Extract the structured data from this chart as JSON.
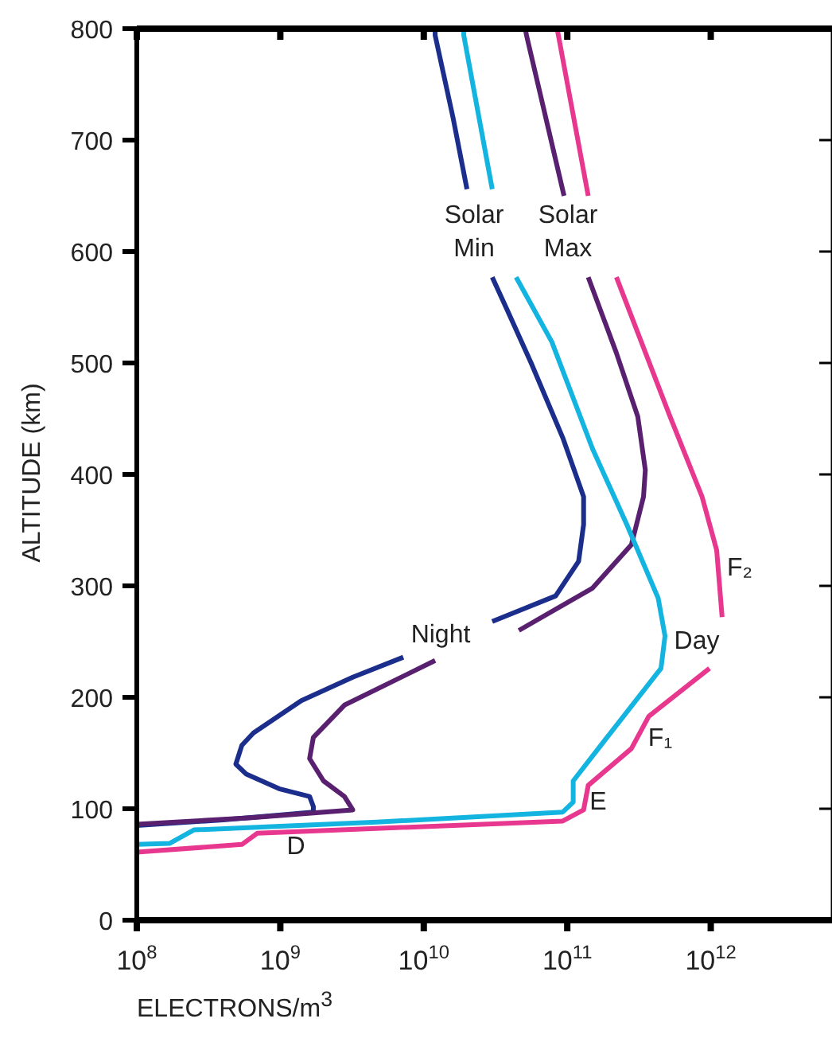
{
  "chart_data": {
    "type": "line",
    "xlabel": "ELECTRONS/m$^{3}$",
    "ylabel": "ALTITUDE (km)",
    "log": "x",
    "xlim": [
      100000000,
      7000000000000
    ],
    "ylim": [
      0,
      800
    ],
    "xticks": [
      {
        "value": 100000000,
        "label": "10$^{8}$"
      },
      {
        "value": 1000000000,
        "label": "10$^{9}$"
      },
      {
        "value": 10000000000,
        "label": "10$^{10}$"
      },
      {
        "value": 100000000000,
        "label": "10$^{11}$"
      },
      {
        "value": 1000000000000,
        "label": "10$^{12}$"
      }
    ],
    "yticks": [
      0,
      100,
      200,
      300,
      400,
      500,
      600,
      700,
      800
    ],
    "marker": "none",
    "line_style": "solid",
    "series": [
      {
        "color": "#1c2e8c",
        "x": [
          100000000.0,
          400000000.0,
          1700000000.0,
          1700000000.0,
          1600000000.0,
          980000000.0,
          580000000.0,
          490000000.0,
          540000000.0,
          650000000.0,
          1400000000.0,
          3200000000.0,
          7200000000.0,
          15000000000.0,
          30000000000.0,
          83000000000.0,
          120000000000.0,
          130000000000.0,
          130000000000.0,
          93000000000.0,
          56000000000.0,
          38000000000.0,
          30000000000.0,
          25000000000.0,
          20000000000.0,
          16000000000.0,
          12000000000.0,
          12000000000.0
        ],
        "values": [
          85,
          90,
          97,
          102,
          111,
          118,
          131,
          140,
          157,
          168,
          197,
          218,
          236,
          null,
          268,
          291,
          322,
          355,
          380,
          433,
          500,
          548,
          577,
          null,
          656,
          720,
          794,
          800
        ]
      },
      {
        "color": "#5a2070",
        "x": [
          100000000.0,
          630000000.0,
          3200000000.0,
          2800000000.0,
          2000000000.0,
          1600000000.0,
          1700000000.0,
          2800000000.0,
          12000000000.0,
          23000000000.0,
          46000000000.0,
          150000000000.0,
          280000000000.0,
          340000000000.0,
          350000000000.0,
          310000000000.0,
          220000000000.0,
          140000000000.0,
          120000000000.0,
          95000000000.0,
          52000000000.0,
          51000000000.0
        ],
        "values": [
          86,
          92,
          99,
          111,
          125,
          145,
          164,
          193,
          233,
          null,
          260,
          298,
          337,
          380,
          404,
          452,
          509,
          577,
          null,
          650,
          794,
          800
        ]
      },
      {
        "color": "#14b4e0",
        "x": [
          100000000.0,
          170000000.0,
          250000000.0,
          4700000000.0,
          93000000000.0,
          110000000000.0,
          110000000000.0,
          200000000000.0,
          450000000000.0,
          480000000000.0,
          430000000000.0,
          260000000000.0,
          150000000000.0,
          78000000000.0,
          44000000000.0,
          37000000000.0,
          30000000000.0,
          19000000000.0,
          19000000000.0
        ],
        "values": [
          68,
          69,
          81,
          88,
          97,
          106,
          125,
          168,
          226,
          255,
          289,
          355,
          423,
          519,
          577,
          null,
          656,
          794,
          800
        ]
      },
      {
        "color": "#e8378e",
        "x": [
          100000000.0,
          540000000.0,
          690000000.0,
          93000000000.0,
          130000000000.0,
          140000000000.0,
          280000000000.0,
          370000000000.0,
          980000000000.0,
          1100000000000.0,
          1200000000000.0,
          1100000000000.0,
          870000000000.0,
          520000000000.0,
          220000000000.0,
          180000000000.0,
          140000000000.0,
          87000000000.0,
          85000000000.0
        ],
        "values": [
          61,
          68,
          78,
          89,
          99,
          121,
          154,
          183,
          226,
          null,
          272,
          332,
          380,
          452,
          577,
          null,
          650,
          793,
          800
        ]
      }
    ],
    "annotations": [
      "Solar Min",
      "Solar Max",
      "Night",
      "Day",
      "F₂",
      "F₁",
      "E",
      "D"
    ]
  }
}
